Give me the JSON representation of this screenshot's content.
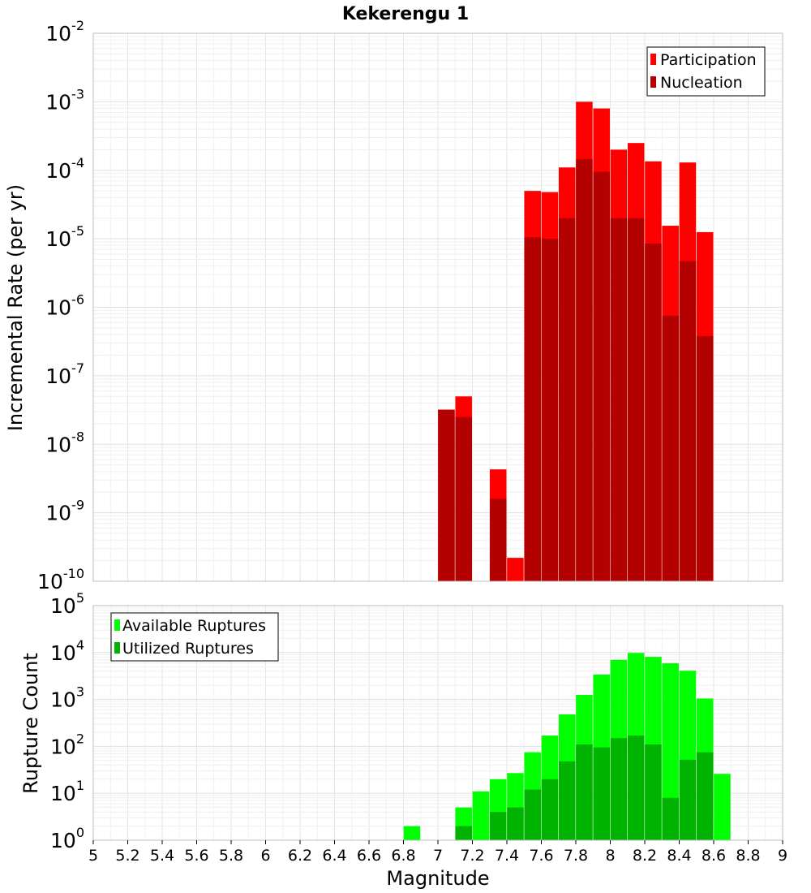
{
  "chart_data": [
    {
      "type": "bar",
      "title": "Kekerengu 1",
      "ylabel": "Incremental Rate (per yr)",
      "xlabel": "",
      "yscale": "log",
      "ylim": [
        1e-10,
        0.01
      ],
      "xlim": [
        5,
        9
      ],
      "grid": true,
      "legend_position": "top-right",
      "x": [
        7.0,
        7.1,
        7.3,
        7.4,
        7.5,
        7.6,
        7.7,
        7.8,
        7.9,
        8.0,
        8.1,
        8.2,
        8.3,
        8.4,
        8.5
      ],
      "series": [
        {
          "name": "Participation",
          "color": "#ff0000",
          "values": [
            3.2e-08,
            5e-08,
            4.3e-09,
            2.2e-10,
            5e-05,
            4.8e-05,
            0.00011,
            0.001,
            0.0008,
            0.0002,
            0.00025,
            0.000135,
            1.55e-05,
            0.00013,
            1.25e-05
          ]
        },
        {
          "name": "Nucleation",
          "color": "#b30000",
          "values": [
            3.2e-08,
            2.5e-08,
            1.6e-09,
            null,
            1.05e-05,
            1e-05,
            2e-05,
            0.000145,
            9.5e-05,
            2e-05,
            2e-05,
            8.5e-06,
            7.5e-07,
            4.7e-06,
            3.8e-07
          ]
        }
      ],
      "yticks": [
        {
          "base": "10",
          "exp": "-10"
        },
        {
          "base": "10",
          "exp": "-9"
        },
        {
          "base": "10",
          "exp": "-8"
        },
        {
          "base": "10",
          "exp": "-7"
        },
        {
          "base": "10",
          "exp": "-6"
        },
        {
          "base": "10",
          "exp": "-5"
        },
        {
          "base": "10",
          "exp": "-4"
        },
        {
          "base": "10",
          "exp": "-3"
        },
        {
          "base": "10",
          "exp": "-2"
        }
      ]
    },
    {
      "type": "bar",
      "ylabel": "Rupture Count",
      "xlabel": "Magnitude",
      "yscale": "log",
      "ylim": [
        1,
        100000
      ],
      "xlim": [
        5,
        9
      ],
      "grid": true,
      "legend_position": "top-left",
      "x": [
        6.8,
        7.0,
        7.1,
        7.2,
        7.3,
        7.4,
        7.5,
        7.6,
        7.7,
        7.8,
        7.9,
        8.0,
        8.1,
        8.2,
        8.3,
        8.4,
        8.5,
        8.6
      ],
      "series": [
        {
          "name": "Available Ruptures",
          "color": "#00ff00",
          "values": [
            2,
            1,
            5,
            11,
            20,
            27,
            75,
            170,
            480,
            1250,
            3400,
            7000,
            9800,
            8100,
            5900,
            4100,
            1050,
            26
          ]
        },
        {
          "name": "Utilized Ruptures",
          "color": "#00b300",
          "values": [
            null,
            1,
            2,
            1,
            4,
            5,
            12,
            20,
            48,
            110,
            95,
            150,
            170,
            110,
            8,
            52,
            75,
            1
          ]
        }
      ],
      "yticks": [
        {
          "base": "10",
          "exp": "0"
        },
        {
          "base": "10",
          "exp": "1"
        },
        {
          "base": "10",
          "exp": "2"
        },
        {
          "base": "10",
          "exp": "3"
        },
        {
          "base": "10",
          "exp": "4"
        },
        {
          "base": "10",
          "exp": "5"
        }
      ],
      "xticks": [
        "5",
        "5.2",
        "5.4",
        "5.6",
        "5.8",
        "6",
        "6.2",
        "6.4",
        "6.6",
        "6.8",
        "7",
        "7.2",
        "7.4",
        "7.6",
        "7.8",
        "8",
        "8.2",
        "8.4",
        "8.6",
        "8.8",
        "9"
      ]
    }
  ]
}
